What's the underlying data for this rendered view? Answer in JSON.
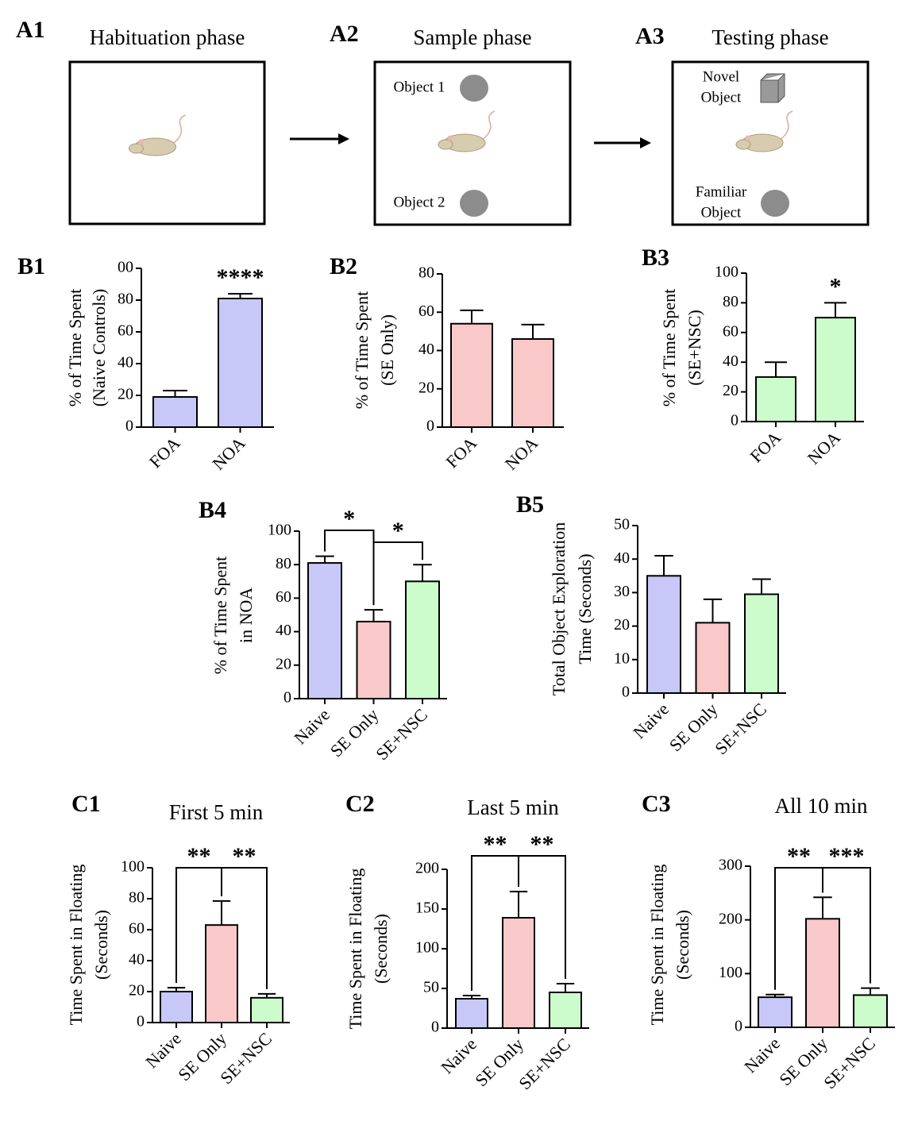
{
  "diagram": {
    "panels": [
      {
        "label": "A1",
        "title": "Habituation phase",
        "objects": []
      },
      {
        "label": "A2",
        "title": "Sample phase",
        "objects": [
          [
            "Object 1"
          ],
          [
            "Object 2"
          ]
        ]
      },
      {
        "label": "A3",
        "title": "Testing phase",
        "objects": [
          [
            "Novel",
            "Object"
          ],
          [
            "Familiar",
            "Object"
          ]
        ]
      }
    ]
  },
  "chart_data": [
    {
      "type": "bar",
      "panel": "B1",
      "ylabel": [
        "% of Time Spent",
        "(Naive Controls)"
      ],
      "categories": [
        "FOA",
        "NOA"
      ],
      "values": [
        19,
        81
      ],
      "errors": [
        4,
        3
      ],
      "colors": [
        "#c8c8f8",
        "#c8c8f8"
      ],
      "ylim": [
        0,
        100
      ],
      "yticks": [
        0,
        20,
        40,
        60,
        80,
        {
          "value": 100,
          "label": "00"
        }
      ],
      "annotations": [
        "****"
      ]
    },
    {
      "type": "bar",
      "panel": "B2",
      "ylabel": [
        "% of Time Spent",
        "(SE Only)"
      ],
      "categories": [
        "FOA",
        "NOA"
      ],
      "values": [
        54,
        46
      ],
      "errors": [
        7,
        7.5
      ],
      "colors": [
        "#f9c8c8",
        "#f9c8c8"
      ],
      "ylim": [
        0,
        80
      ],
      "yticks": [
        0,
        20,
        40,
        60,
        80
      ],
      "annotations": []
    },
    {
      "type": "bar",
      "panel": "B3",
      "ylabel": [
        "% of Time Spent",
        "(SE+NSC)"
      ],
      "categories": [
        "FOA",
        "NOA"
      ],
      "values": [
        30,
        70
      ],
      "errors": [
        10,
        10
      ],
      "colors": [
        "#ccfccc",
        "#ccfccc"
      ],
      "ylim": [
        0,
        100
      ],
      "yticks": [
        0,
        20,
        40,
        60,
        80,
        100
      ],
      "annotations": [
        "*"
      ]
    },
    {
      "type": "bar",
      "panel": "B4",
      "ylabel": [
        "% of Time Spent",
        "in NOA"
      ],
      "categories": [
        "Naive",
        "SE Only",
        "SE+NSC"
      ],
      "values": [
        81,
        46,
        70
      ],
      "errors": [
        4,
        7,
        10
      ],
      "colors": [
        "#c8c8f8",
        "#f9c8c8",
        "#ccfccc"
      ],
      "ylim": [
        0,
        100
      ],
      "yticks": [
        0,
        20,
        40,
        60,
        80,
        100
      ],
      "annotations": [
        "*",
        "*"
      ]
    },
    {
      "type": "bar",
      "panel": "B5",
      "ylabel": [
        "Total Object Exploration",
        "Time (Seconds)"
      ],
      "categories": [
        "Naive",
        "SE Only",
        "SE+NSC"
      ],
      "values": [
        35,
        21,
        29.5
      ],
      "errors": [
        6,
        7,
        4.5
      ],
      "colors": [
        "#c8c8f8",
        "#f9c8c8",
        "#ccfccc"
      ],
      "ylim": [
        0,
        50
      ],
      "yticks": [
        0,
        10,
        20,
        30,
        40,
        50
      ],
      "annotations": []
    },
    {
      "type": "bar",
      "panel": "C1",
      "title": "First 5 min",
      "ylabel": [
        "Time Spent in Floating",
        "(Seconds)"
      ],
      "categories": [
        "Naive",
        "SE Only",
        "SE+NSC"
      ],
      "values": [
        20,
        63,
        16
      ],
      "errors": [
        2.5,
        15.5,
        2.5
      ],
      "colors": [
        "#c8c8f8",
        "#f9c8c8",
        "#ccfccc"
      ],
      "ylim": [
        0,
        100
      ],
      "yticks": [
        0,
        20,
        40,
        60,
        80,
        100
      ],
      "annotations": [
        "**",
        "**"
      ]
    },
    {
      "type": "bar",
      "panel": "C2",
      "title": "Last 5 min",
      "ylabel": [
        "Time Spent in Floating",
        "(Seconds)"
      ],
      "categories": [
        "Naive",
        "SE Only",
        "SE+NSC"
      ],
      "values": [
        37,
        139,
        45
      ],
      "errors": [
        4,
        33,
        11
      ],
      "colors": [
        "#c8c8f8",
        "#f9c8c8",
        "#ccfccc"
      ],
      "ylim": [
        0,
        200
      ],
      "yticks": [
        0,
        50,
        100,
        150,
        200
      ],
      "annotations": [
        "**",
        "**"
      ]
    },
    {
      "type": "bar",
      "panel": "C3",
      "title": "All 10 min",
      "ylabel": [
        "Time Spent in Floating",
        "(Seconds)"
      ],
      "categories": [
        "Naive",
        "SE Only",
        "SE+NSC"
      ],
      "values": [
        56,
        202,
        60
      ],
      "errors": [
        5,
        40,
        13
      ],
      "colors": [
        "#c8c8f8",
        "#f9c8c8",
        "#ccfccc"
      ],
      "ylim": [
        0,
        300
      ],
      "yticks": [
        0,
        100,
        200,
        300
      ],
      "annotations": [
        "**",
        "***"
      ]
    }
  ]
}
